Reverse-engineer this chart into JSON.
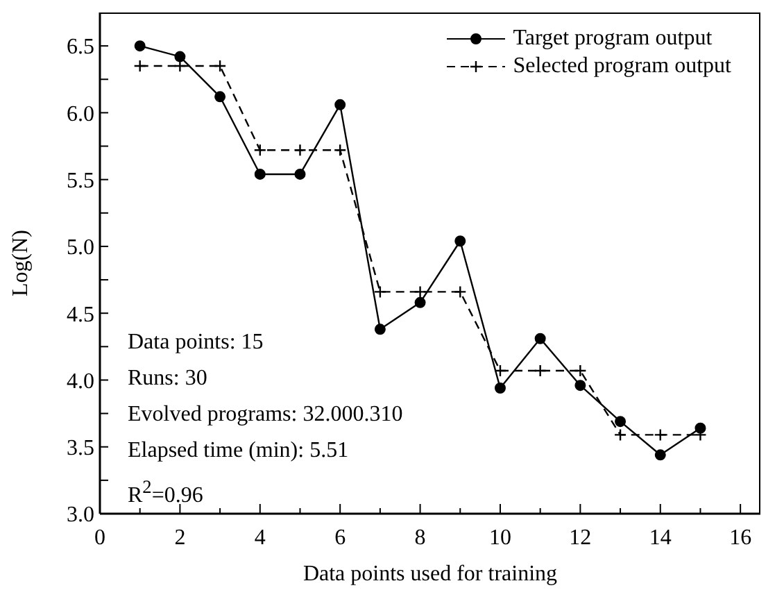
{
  "chart_data": {
    "type": "line",
    "xlabel": "Data points used for training",
    "ylabel": "Log(N)",
    "x": [
      1,
      2,
      3,
      4,
      5,
      6,
      7,
      8,
      9,
      10,
      11,
      12,
      13,
      14,
      15
    ],
    "series": [
      {
        "name": "Target program output",
        "color": "#000000",
        "marker": "circle",
        "line_style": "solid",
        "values": [
          6.5,
          6.42,
          6.12,
          5.54,
          5.54,
          6.06,
          4.38,
          4.58,
          5.04,
          3.94,
          4.31,
          3.96,
          3.69,
          3.44,
          3.64
        ]
      },
      {
        "name": "Selected program output",
        "color": "#000000",
        "marker": "cross",
        "line_style": "dashed",
        "values": [
          6.35,
          6.35,
          6.35,
          5.72,
          5.72,
          5.72,
          4.66,
          4.66,
          4.66,
          4.07,
          4.07,
          4.07,
          3.59,
          3.59,
          3.59
        ]
      }
    ],
    "xlim": [
      0,
      16.5
    ],
    "xticks": [
      0,
      {
        "value": 1,
        "label": null
      },
      2,
      {
        "value": 3,
        "label": null
      },
      4,
      {
        "value": 5,
        "label": null
      },
      6,
      {
        "value": 7,
        "label": null
      },
      8,
      {
        "value": 9,
        "label": null
      },
      10,
      {
        "value": 11,
        "label": null
      },
      12,
      {
        "value": 13,
        "label": null
      },
      14,
      {
        "value": 15,
        "label": null
      },
      16
    ],
    "ylim": [
      3.0,
      6.75
    ],
    "yticks": [
      {
        "value": 3,
        "label": "3.0"
      },
      {
        "value": 3.25,
        "label": null
      },
      {
        "value": 3.5,
        "label": "3.5"
      },
      {
        "value": 3.75,
        "label": null
      },
      {
        "value": 4,
        "label": "4.0"
      },
      {
        "value": 4.25,
        "label": null
      },
      {
        "value": 4.5,
        "label": "4.5"
      },
      {
        "value": 4.75,
        "label": null
      },
      {
        "value": 5,
        "label": "5.0"
      },
      {
        "value": 5.25,
        "label": null
      },
      {
        "value": 5.5,
        "label": "5.5"
      },
      {
        "value": 5.75,
        "label": null
      },
      {
        "value": 6,
        "label": "6.0"
      },
      {
        "value": 6.25,
        "label": null
      },
      {
        "value": 6.5,
        "label": "6.5"
      }
    ],
    "grid": false,
    "legend": "top right",
    "annotations": [
      "Data points: 15",
      "Runs: 30",
      "Evolved programs: 32.000.310",
      "Elapsed time (min): 5.51",
      "R$^{2}$=0.96"
    ]
  }
}
